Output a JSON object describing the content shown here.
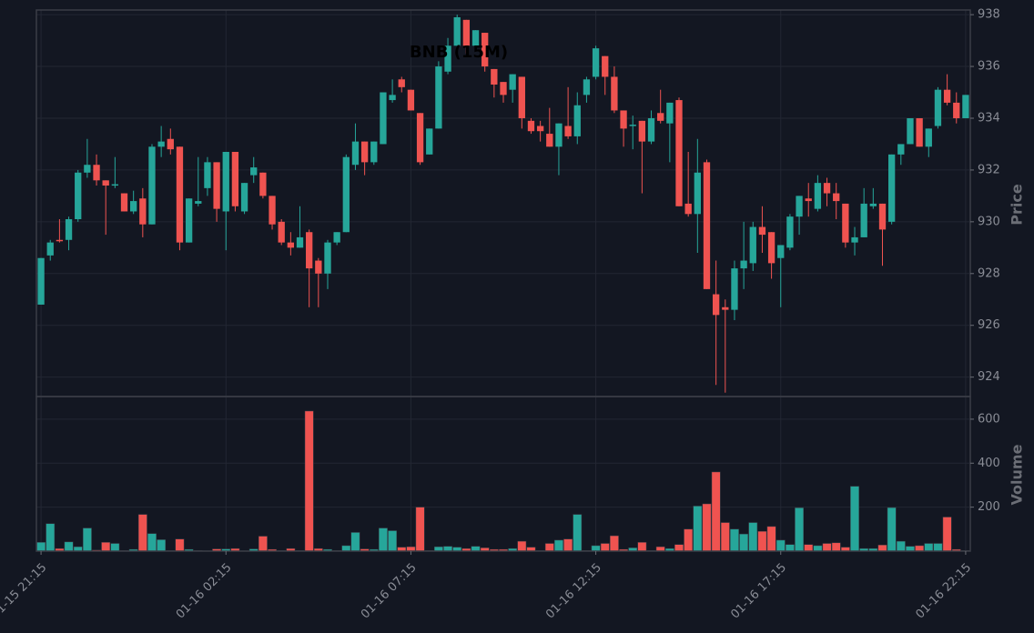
{
  "chart_data": [
    {
      "type": "candlestick",
      "title": "BNB (15M)",
      "ylabel": "Price",
      "up_color": "#26a69a",
      "down_color": "#ef5350",
      "grid": true,
      "ylim": [
        923.25,
        938.18
      ],
      "yticks": [
        924,
        926,
        928,
        930,
        932,
        934,
        936,
        938
      ],
      "open": [
        926.8,
        928.7,
        929.3,
        929.3,
        930.1,
        931.9,
        932.2,
        931.6,
        931.4,
        931.1,
        930.4,
        930.9,
        929.9,
        932.9,
        933.2,
        932.9,
        929.2,
        930.7,
        931.3,
        932.3,
        930.4,
        932.7,
        930.4,
        931.8,
        931.9,
        931.0,
        930.0,
        929.2,
        929.0,
        929.6,
        928.5,
        928.0,
        929.2,
        929.6,
        932.2,
        933.1,
        932.3,
        933.0,
        934.7,
        935.5,
        935.1,
        934.2,
        932.6,
        933.6,
        935.8,
        936.8,
        937.8,
        936.8,
        937.3,
        935.9,
        935.4,
        935.1,
        935.6,
        933.9,
        933.7,
        933.4,
        932.9,
        933.7,
        933.3,
        934.9,
        935.6,
        936.4,
        935.6,
        934.3,
        933.7,
        933.9,
        933.1,
        934.2,
        933.8,
        934.7,
        930.7,
        930.3,
        932.3,
        927.2,
        926.7,
        926.6,
        928.2,
        928.4,
        929.8,
        929.6,
        928.6,
        929.0,
        930.2,
        930.9,
        930.5,
        931.5,
        931.1,
        930.7,
        929.2,
        929.4,
        930.6,
        930.7,
        930.0,
        932.6,
        933.0,
        934.0,
        932.9,
        933.7,
        935.1,
        934.6,
        934.0
      ],
      "high": [
        928.6,
        929.3,
        930.1,
        930.2,
        932.0,
        933.2,
        932.6,
        931.6,
        932.5,
        931.1,
        931.2,
        931.3,
        933.0,
        933.7,
        933.6,
        932.9,
        930.9,
        932.5,
        932.5,
        932.3,
        932.7,
        932.7,
        931.5,
        932.5,
        931.9,
        931.0,
        930.1,
        929.6,
        930.6,
        929.7,
        928.6,
        929.3,
        929.6,
        932.6,
        933.8,
        933.1,
        933.1,
        935.0,
        935.5,
        935.6,
        935.1,
        934.2,
        933.6,
        936.2,
        937.1,
        938.0,
        937.8,
        937.4,
        937.3,
        935.9,
        935.4,
        935.7,
        935.6,
        934.0,
        933.9,
        934.4,
        933.8,
        935.2,
        935.0,
        935.6,
        936.8,
        936.4,
        936.0,
        934.3,
        934.1,
        933.9,
        934.3,
        935.1,
        934.6,
        934.8,
        932.7,
        933.2,
        932.4,
        928.5,
        927.0,
        928.5,
        930.0,
        930.0,
        930.6,
        929.6,
        929.1,
        930.3,
        931.0,
        931.5,
        931.8,
        931.7,
        931.5,
        930.7,
        929.8,
        931.3,
        931.3,
        930.7,
        932.6,
        933.0,
        934.0,
        934.0,
        933.6,
        935.2,
        935.7,
        935.0,
        934.9
      ],
      "low": [
        926.8,
        928.5,
        929.2,
        928.9,
        930.0,
        931.7,
        931.4,
        929.5,
        931.3,
        930.4,
        930.3,
        929.4,
        929.9,
        932.5,
        932.6,
        928.9,
        929.2,
        930.6,
        931.0,
        930.0,
        928.9,
        930.4,
        930.3,
        931.5,
        930.9,
        929.7,
        929.1,
        928.7,
        929.0,
        926.7,
        926.7,
        927.4,
        929.1,
        929.6,
        932.0,
        931.8,
        932.2,
        933.0,
        934.6,
        935.0,
        934.3,
        932.2,
        932.6,
        933.6,
        935.7,
        936.8,
        936.5,
        936.6,
        935.8,
        934.8,
        934.6,
        934.6,
        933.6,
        933.4,
        933.1,
        932.9,
        931.8,
        933.2,
        933.0,
        934.6,
        935.5,
        934.9,
        934.2,
        932.9,
        932.8,
        931.1,
        933.0,
        933.8,
        932.3,
        930.6,
        930.2,
        928.8,
        927.4,
        923.7,
        923.4,
        926.2,
        927.4,
        928.1,
        928.8,
        927.8,
        926.7,
        928.9,
        929.5,
        930.2,
        930.4,
        930.6,
        930.1,
        929.0,
        928.7,
        929.4,
        930.5,
        928.3,
        929.9,
        932.2,
        933.0,
        932.9,
        932.5,
        933.6,
        934.5,
        933.8,
        934.0
      ],
      "close": [
        928.6,
        929.2,
        929.25,
        930.1,
        931.9,
        932.2,
        931.6,
        931.4,
        931.45,
        930.4,
        930.8,
        929.9,
        932.9,
        933.1,
        932.8,
        929.2,
        930.9,
        930.8,
        932.3,
        930.5,
        932.7,
        930.6,
        931.5,
        932.1,
        931.0,
        929.9,
        929.2,
        929.0,
        929.4,
        928.2,
        928.0,
        929.2,
        929.6,
        932.5,
        933.1,
        932.3,
        933.1,
        935.0,
        934.9,
        935.2,
        934.3,
        932.3,
        933.6,
        936.0,
        936.8,
        937.9,
        936.8,
        937.4,
        936.0,
        935.3,
        934.9,
        935.7,
        934.0,
        933.5,
        933.5,
        932.9,
        933.8,
        933.3,
        934.5,
        935.5,
        936.7,
        935.6,
        934.3,
        933.6,
        933.75,
        933.1,
        934.0,
        933.9,
        934.6,
        930.6,
        930.3,
        931.9,
        927.4,
        926.4,
        926.6,
        928.2,
        928.5,
        929.8,
        929.5,
        928.4,
        929.1,
        930.2,
        931.0,
        930.8,
        931.5,
        931.1,
        930.8,
        929.2,
        929.4,
        930.7,
        930.7,
        929.7,
        932.6,
        933.0,
        934.0,
        932.9,
        933.6,
        935.1,
        934.6,
        934.0,
        934.9
      ]
    },
    {
      "type": "bar",
      "ylabel": "Volume",
      "grid": true,
      "ylim": [
        0,
        703
      ],
      "yticks": [
        200,
        400,
        600
      ],
      "categories": [
        "01-15 21:15",
        null,
        null,
        null,
        null,
        null,
        null,
        null,
        null,
        null,
        null,
        null,
        null,
        null,
        null,
        null,
        null,
        null,
        null,
        null,
        "01-16 02:15",
        null,
        null,
        null,
        null,
        null,
        null,
        null,
        null,
        null,
        null,
        null,
        null,
        null,
        null,
        null,
        null,
        null,
        null,
        null,
        "01-16 07:15",
        null,
        null,
        null,
        null,
        null,
        null,
        null,
        null,
        null,
        null,
        null,
        null,
        null,
        null,
        null,
        null,
        null,
        null,
        null,
        "01-16 12:15",
        null,
        null,
        null,
        null,
        null,
        null,
        null,
        null,
        null,
        null,
        null,
        null,
        null,
        null,
        null,
        null,
        null,
        null,
        null,
        "01-16 17:15",
        null,
        null,
        null,
        null,
        null,
        null,
        null,
        null,
        null,
        null,
        null,
        null,
        null,
        null,
        null,
        null,
        null,
        null,
        null,
        "01-16 22:15"
      ],
      "values": [
        40,
        125,
        12,
        42,
        20,
        105,
        5,
        40,
        35,
        3,
        8,
        167,
        80,
        52,
        3,
        55,
        8,
        3,
        2,
        10,
        10,
        12,
        2,
        10,
        68,
        8,
        3,
        12,
        3,
        637,
        12,
        8,
        3,
        25,
        85,
        10,
        8,
        105,
        93,
        18,
        20,
        200,
        3,
        20,
        22,
        18,
        12,
        22,
        15,
        8,
        8,
        12,
        45,
        18,
        3,
        35,
        50,
        55,
        167,
        3,
        25,
        35,
        70,
        8,
        15,
        40,
        3,
        20,
        12,
        30,
        100,
        205,
        215,
        360,
        130,
        100,
        78,
        130,
        90,
        112,
        50,
        30,
        197,
        30,
        25,
        35,
        38,
        18,
        295,
        12,
        12,
        28,
        198,
        45,
        22,
        25,
        35,
        35,
        155,
        8,
        3
      ]
    }
  ]
}
